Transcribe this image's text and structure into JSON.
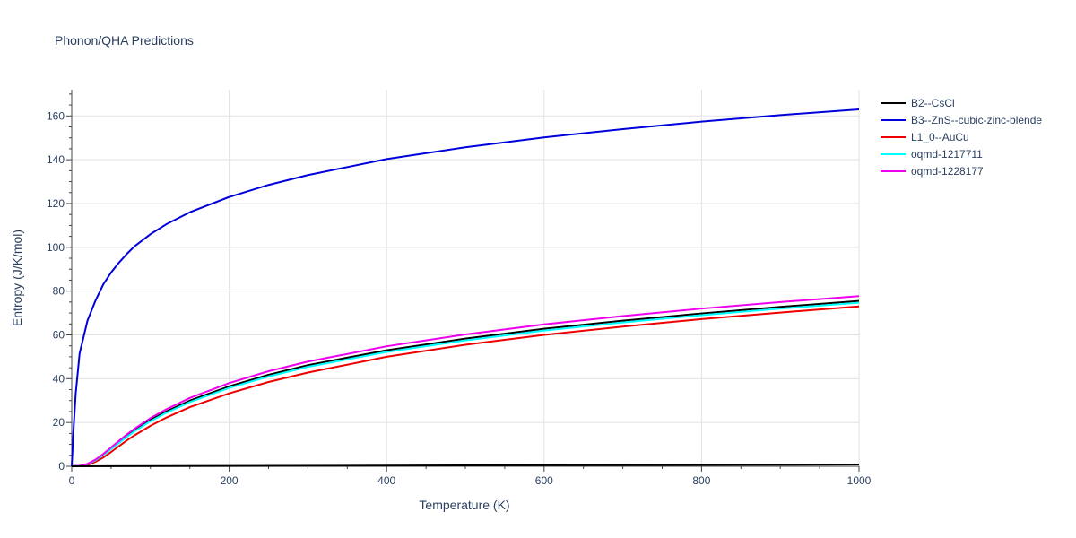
{
  "chart_data": {
    "type": "line",
    "title": "Phonon/QHA Predictions",
    "xlabel": "Temperature (K)",
    "ylabel": "Entropy (J/K/mol)",
    "xlim": [
      0,
      1000
    ],
    "ylim": [
      0,
      172
    ],
    "x_ticks": [
      0,
      200,
      400,
      600,
      800,
      1000
    ],
    "y_ticks": [
      0,
      20,
      40,
      60,
      80,
      100,
      120,
      140,
      160
    ],
    "grid": true,
    "legend_position": "top-right outside",
    "series": [
      {
        "name": "B2--CsCl",
        "color": "#000000",
        "x": [
          0,
          10,
          20,
          30,
          40,
          50,
          60,
          70,
          80,
          100,
          120,
          150,
          200,
          250,
          300,
          400,
          500,
          600,
          700,
          800,
          900,
          1000
        ],
        "y": [
          0,
          0.2,
          1.0,
          2.8,
          5.3,
          8.1,
          11.0,
          13.8,
          16.5,
          21.2,
          25.0,
          30.0,
          36.5,
          41.8,
          46.2,
          53.0,
          58.3,
          62.8,
          66.5,
          69.8,
          72.8,
          75.5
        ]
      },
      {
        "name": "B3--ZnS--cubic-zinc-blende",
        "color": "#0000dd",
        "x": [
          0,
          2,
          5,
          10,
          20,
          30,
          40,
          50,
          60,
          70,
          80,
          100,
          120,
          150,
          200,
          250,
          300,
          400,
          500,
          600,
          700,
          800,
          900,
          1000
        ],
        "y": [
          0,
          15,
          33,
          51.5,
          66.5,
          75.5,
          83.0,
          88.5,
          93.0,
          97.0,
          100.5,
          106.0,
          110.5,
          116.0,
          123.0,
          128.5,
          133.0,
          140.3,
          145.7,
          150.2,
          154.0,
          157.4,
          160.4,
          163.0
        ]
      },
      {
        "name": "L1_0--AuCu",
        "color": "#ee0000",
        "x": [
          0,
          10,
          20,
          30,
          40,
          50,
          60,
          70,
          80,
          100,
          120,
          150,
          200,
          250,
          300,
          400,
          500,
          600,
          700,
          800,
          900,
          1000
        ],
        "y": [
          0,
          0.1,
          0.6,
          2.0,
          4.0,
          6.5,
          9.2,
          11.8,
          14.2,
          18.5,
          22.2,
          27.0,
          33.3,
          38.5,
          42.8,
          50.0,
          55.5,
          60.0,
          63.8,
          67.2,
          70.2,
          73.0
        ]
      },
      {
        "name": "oqmd-1217711",
        "color": "#00ffff",
        "x": [
          0,
          10,
          20,
          30,
          40,
          50,
          60,
          70,
          80,
          100,
          120,
          150,
          200,
          250,
          300,
          400,
          500,
          600,
          700,
          800,
          900,
          1000
        ],
        "y": [
          0,
          0.2,
          1.0,
          2.7,
          5.1,
          7.8,
          10.6,
          13.4,
          16.0,
          20.6,
          24.4,
          29.3,
          35.8,
          41.0,
          45.4,
          52.2,
          57.5,
          62.0,
          65.7,
          69.0,
          72.0,
          74.7
        ]
      },
      {
        "name": "oqmd-1228177",
        "color": "#ee00ee",
        "x": [
          0,
          10,
          20,
          30,
          40,
          50,
          60,
          70,
          80,
          100,
          120,
          150,
          200,
          250,
          300,
          400,
          500,
          600,
          700,
          800,
          900,
          1000
        ],
        "y": [
          0,
          0.2,
          1.1,
          3.0,
          5.6,
          8.6,
          11.6,
          14.5,
          17.2,
          22.0,
          26.0,
          31.2,
          38.0,
          43.4,
          47.8,
          54.8,
          60.2,
          64.8,
          68.6,
          72.0,
          75.0,
          77.7
        ]
      },
      {
        "name": "",
        "color": "#000000",
        "legend": false,
        "x": [
          0,
          1000
        ],
        "y": [
          0,
          0.8
        ]
      }
    ]
  }
}
